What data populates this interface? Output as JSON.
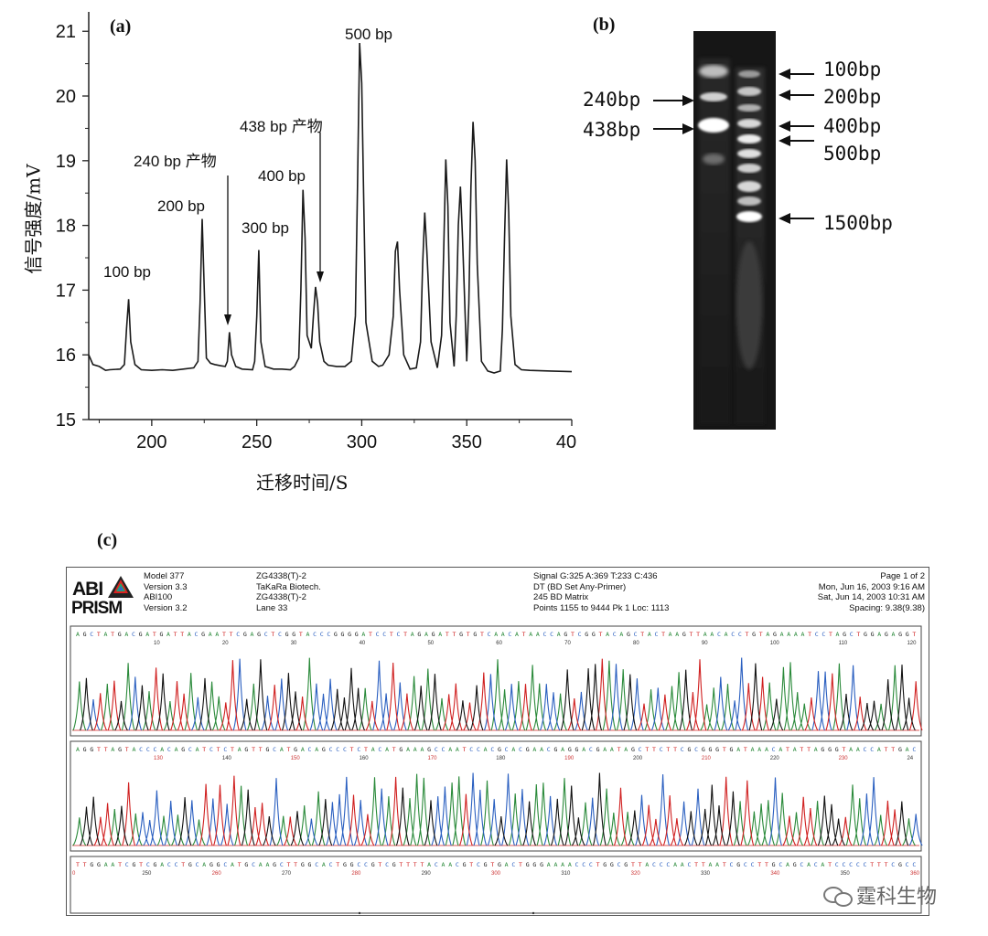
{
  "panel_a": {
    "label": "(a)",
    "ylabel": "信号强度/mV",
    "xlabel": "迁移时间/S",
    "yticks": [
      "21",
      "20",
      "19",
      "18",
      "17",
      "16",
      "15"
    ],
    "xticks": [
      "200",
      "250",
      "300",
      "350",
      "40"
    ],
    "annotations": {
      "p100": "100 bp",
      "p200": "200 bp",
      "p240": "240 bp 产物",
      "p300": "300 bp",
      "p400": "400 bp",
      "p438": "438 bp  产物",
      "p500": "500 bp"
    }
  },
  "panel_b": {
    "label": "(b)",
    "left_markers": [
      "240bp",
      "438bp"
    ],
    "right_markers": [
      "100bp",
      "200bp",
      "400bp",
      "500bp",
      "1500bp"
    ]
  },
  "panel_c": {
    "label": "(c)",
    "logo_top": "ABI",
    "logo_bottom": "PRISM",
    "col1": [
      "Model 377",
      "Version 3.3",
      "ABI100",
      "Version 3.2"
    ],
    "col2": [
      "ZG4338(T)-2",
      "TaKaRa Biotech.",
      "ZG4338(T)-2",
      "Lane 33"
    ],
    "col3": [
      "Signal G:325 A:369 T:233 C:436",
      "DT (BD Set Any-Primer)",
      "245 BD Matrix",
      "Points 1155 to 9444   Pk 1 Loc: 1113"
    ],
    "col4": [
      "Page 1 of 2",
      "Mon, Jun 16, 2003  9:16 AM",
      "Sat, Jun 14, 2003  10:31 AM",
      "Spacing: 9.38(9.38)"
    ],
    "seq_rows": [
      "AGCTATGACGATGATTACGAATTCGAGCTCGGTACCCGGGGATCCTCTAGAGATTGTGTCAACATAACCAGTCGGTACAGCTACTAAGTTAACACCTGTAGAAAATCCTAGCTGGAGAGGT",
      "AGGTTAGTACCCACAGCATCTCTAGTTGCATGACAGCCCTCTACATGAAAGCCAATCCACGCACGAACGAGGACGAATAGCTTCTTCGCGGGTGATAAACATATTAGGGTAACCATTGAC",
      "TTGGAATCGTCGACCTGCAGGCATGCAAGCTTGGCACTGGCCGTCGTTTTACAACGTCGTGACTGGGAAAACCCTGGCGTTACCCAACTTAATCGCCTTGCAGCACATCCCCCTTTCGCC"
    ],
    "row_nums": [
      [
        "10",
        "20",
        "30",
        "40",
        "50",
        "60",
        "70",
        "80",
        "90",
        "100",
        "110",
        "120"
      ],
      [
        "130",
        "140",
        "150",
        "160",
        "170",
        "180",
        "190",
        "200",
        "210",
        "220",
        "230",
        "24"
      ],
      [
        "0",
        "250",
        "260",
        "270",
        "280",
        "290",
        "300",
        "310",
        "320",
        "330",
        "340",
        "350",
        "360"
      ]
    ]
  },
  "watermark": "霆科生物",
  "chart_data": [
    {
      "type": "line",
      "title": "",
      "xlabel": "迁移时间/S",
      "ylabel": "信号强度/mV",
      "xlim": [
        170,
        400
      ],
      "ylim": [
        15,
        21.3
      ],
      "grid": false,
      "series": [
        {
          "x": [
            170,
            172,
            175,
            178,
            180,
            185,
            187,
            188,
            189,
            190,
            192,
            195,
            200,
            205,
            210,
            215,
            220,
            222,
            223,
            224,
            225,
            226,
            228,
            230,
            233,
            235,
            236,
            237,
            238,
            240,
            243,
            248,
            249,
            250,
            251,
            252,
            254,
            258,
            262,
            266,
            268,
            270,
            271,
            272,
            273,
            274,
            276,
            277,
            278,
            279,
            280,
            282,
            284,
            288,
            292,
            295,
            297,
            298,
            299,
            300,
            301,
            302,
            305,
            308,
            310,
            313,
            315,
            316,
            317,
            318,
            320,
            323,
            326,
            328,
            329,
            330,
            331,
            333,
            336,
            338,
            339,
            340,
            341,
            342,
            344,
            345,
            346,
            347,
            348,
            350,
            351,
            352,
            353,
            354,
            355,
            357,
            360,
            363,
            366,
            367,
            368,
            369,
            370,
            371,
            373,
            376,
            380,
            390,
            400
          ],
          "y": [
            16.0,
            15.85,
            15.82,
            15.76,
            15.77,
            15.78,
            15.85,
            16.4,
            16.86,
            16.2,
            15.85,
            15.77,
            15.76,
            15.77,
            15.76,
            15.78,
            15.8,
            15.9,
            16.8,
            18.1,
            17.0,
            15.95,
            15.87,
            15.85,
            15.83,
            15.82,
            15.9,
            16.35,
            16.0,
            15.82,
            15.78,
            15.77,
            15.9,
            16.6,
            17.62,
            16.2,
            15.82,
            15.78,
            15.78,
            15.77,
            15.82,
            15.95,
            17.0,
            18.55,
            17.8,
            16.3,
            16.1,
            16.6,
            17.05,
            16.8,
            16.2,
            15.9,
            15.84,
            15.82,
            15.82,
            15.9,
            16.6,
            18.6,
            20.82,
            20.2,
            18.3,
            16.5,
            15.9,
            15.82,
            15.84,
            16.0,
            16.6,
            17.6,
            17.75,
            17.0,
            16.0,
            15.78,
            15.8,
            16.2,
            17.4,
            18.2,
            17.6,
            16.2,
            15.8,
            16.3,
            17.6,
            19.02,
            18.3,
            16.5,
            15.82,
            16.6,
            18.0,
            18.6,
            17.8,
            15.9,
            16.8,
            18.6,
            19.6,
            19.0,
            17.4,
            15.9,
            15.75,
            15.72,
            15.75,
            16.4,
            17.8,
            19.02,
            18.2,
            16.6,
            15.85,
            15.77,
            15.76,
            15.75,
            15.74
          ]
        }
      ],
      "annotations": [
        "100 bp",
        "200 bp",
        "240 bp 产物",
        "300 bp",
        "400 bp",
        "438 bp  产物",
        "500 bp"
      ]
    }
  ]
}
